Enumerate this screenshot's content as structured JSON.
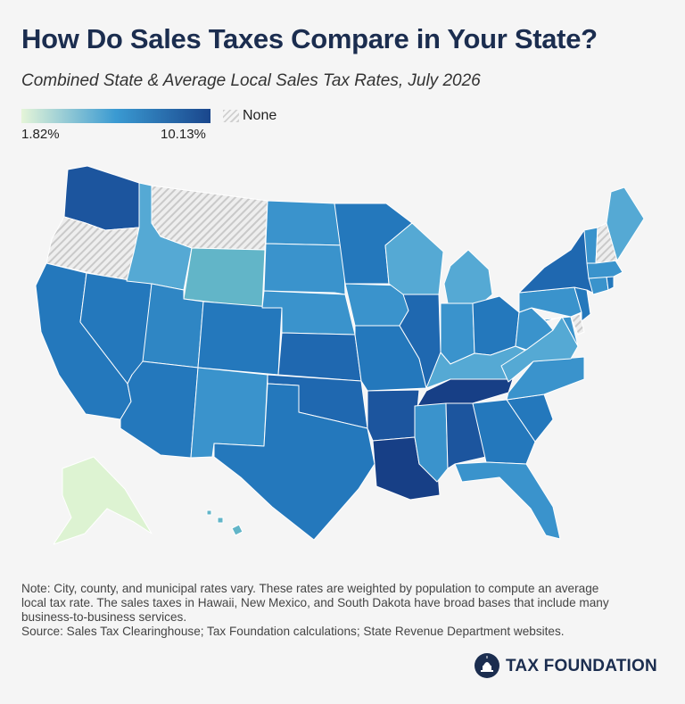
{
  "title": "How Do Sales Taxes Compare in Your State?",
  "subtitle": "Combined State & Average Local Sales Tax Rates, July 2026",
  "legend": {
    "min_label": "1.82%",
    "max_label": "10.13%",
    "none_label": "None",
    "color_low": "#e5f5d8",
    "color_mid": "#3a9ad2",
    "color_high": "#1a468c",
    "none_pattern": "diagonal-hatch"
  },
  "note": {
    "line1": "Note: City, county, and municipal rates vary. These rates are weighted by population to compute an average",
    "line2": "local tax rate. The sales taxes in Hawaii, New Mexico, and South Dakota have broad bases that include many",
    "line3": "business-to-business services.",
    "source": "Source: Sales Tax Clearinghouse; Tax Foundation calculations; State Revenue Department websites."
  },
  "logo": {
    "text": "TAX FOUNDATION",
    "icon": "capitol-dome-icon"
  },
  "states": [
    {
      "id": "WA",
      "name": "Washington",
      "tier": "dark"
    },
    {
      "id": "OR",
      "name": "Oregon",
      "tier": "none"
    },
    {
      "id": "CA",
      "name": "California",
      "tier": "high"
    },
    {
      "id": "NV",
      "name": "Nevada",
      "tier": "high"
    },
    {
      "id": "ID",
      "name": "Idaho",
      "tier": "light"
    },
    {
      "id": "MT",
      "name": "Montana",
      "tier": "none"
    },
    {
      "id": "WY",
      "name": "Wyoming",
      "tier": "light2"
    },
    {
      "id": "UT",
      "name": "Utah",
      "tier": "midhigh"
    },
    {
      "id": "AZ",
      "name": "Arizona",
      "tier": "high"
    },
    {
      "id": "CO",
      "name": "Colorado",
      "tier": "high"
    },
    {
      "id": "NM",
      "name": "New Mexico",
      "tier": "mid"
    },
    {
      "id": "ND",
      "name": "North Dakota",
      "tier": "mid"
    },
    {
      "id": "SD",
      "name": "South Dakota",
      "tier": "mid"
    },
    {
      "id": "NE",
      "name": "Nebraska",
      "tier": "mid"
    },
    {
      "id": "KS",
      "name": "Kansas",
      "tier": "high2"
    },
    {
      "id": "OK",
      "name": "Oklahoma",
      "tier": "high2"
    },
    {
      "id": "TX",
      "name": "Texas",
      "tier": "high"
    },
    {
      "id": "MN",
      "name": "Minnesota",
      "tier": "high"
    },
    {
      "id": "IA",
      "name": "Iowa",
      "tier": "mid"
    },
    {
      "id": "MO",
      "name": "Missouri",
      "tier": "high"
    },
    {
      "id": "AR",
      "name": "Arkansas",
      "tier": "dark"
    },
    {
      "id": "LA",
      "name": "Louisiana",
      "tier": "darkest"
    },
    {
      "id": "WI",
      "name": "Wisconsin",
      "tier": "light"
    },
    {
      "id": "IL",
      "name": "Illinois",
      "tier": "high2"
    },
    {
      "id": "MI",
      "name": "Michigan",
      "tier": "light"
    },
    {
      "id": "IN",
      "name": "Indiana",
      "tier": "mid"
    },
    {
      "id": "OH",
      "name": "Ohio",
      "tier": "high"
    },
    {
      "id": "KY",
      "name": "Kentucky",
      "tier": "light"
    },
    {
      "id": "TN",
      "name": "Tennessee",
      "tier": "darkest"
    },
    {
      "id": "MS",
      "name": "Mississippi",
      "tier": "mid"
    },
    {
      "id": "AL",
      "name": "Alabama",
      "tier": "dark"
    },
    {
      "id": "GA",
      "name": "Georgia",
      "tier": "high"
    },
    {
      "id": "FL",
      "name": "Florida",
      "tier": "mid"
    },
    {
      "id": "SC",
      "name": "South Carolina",
      "tier": "high"
    },
    {
      "id": "NC",
      "name": "North Carolina",
      "tier": "mid"
    },
    {
      "id": "VA",
      "name": "Virginia",
      "tier": "light"
    },
    {
      "id": "WV",
      "name": "West Virginia",
      "tier": "mid"
    },
    {
      "id": "PA",
      "name": "Pennsylvania",
      "tier": "mid"
    },
    {
      "id": "NY",
      "name": "New York",
      "tier": "high2"
    },
    {
      "id": "VT",
      "name": "Vermont",
      "tier": "mid"
    },
    {
      "id": "NH",
      "name": "New Hampshire",
      "tier": "none"
    },
    {
      "id": "ME",
      "name": "Maine",
      "tier": "light"
    },
    {
      "id": "MA",
      "name": "Massachusetts",
      "tier": "mid"
    },
    {
      "id": "CT",
      "name": "Connecticut",
      "tier": "mid"
    },
    {
      "id": "RI",
      "name": "Rhode Island",
      "tier": "high"
    },
    {
      "id": "NJ",
      "name": "New Jersey",
      "tier": "high"
    },
    {
      "id": "DE",
      "name": "Delaware",
      "tier": "none"
    },
    {
      "id": "MD",
      "name": "Maryland",
      "tier": "mid"
    },
    {
      "id": "AK",
      "name": "Alaska",
      "tier": "lowest"
    },
    {
      "id": "HI",
      "name": "Hawaii",
      "tier": "light2"
    }
  ],
  "tier_colors": {
    "lowest": "#ddf3d2",
    "light2": "#62b5c8",
    "light": "#55a9d4",
    "mid": "#3a93cc",
    "midhigh": "#2f86c4",
    "high": "#2478bc",
    "high2": "#1f68b0",
    "dark": "#1c559e",
    "darkest": "#173f86"
  }
}
